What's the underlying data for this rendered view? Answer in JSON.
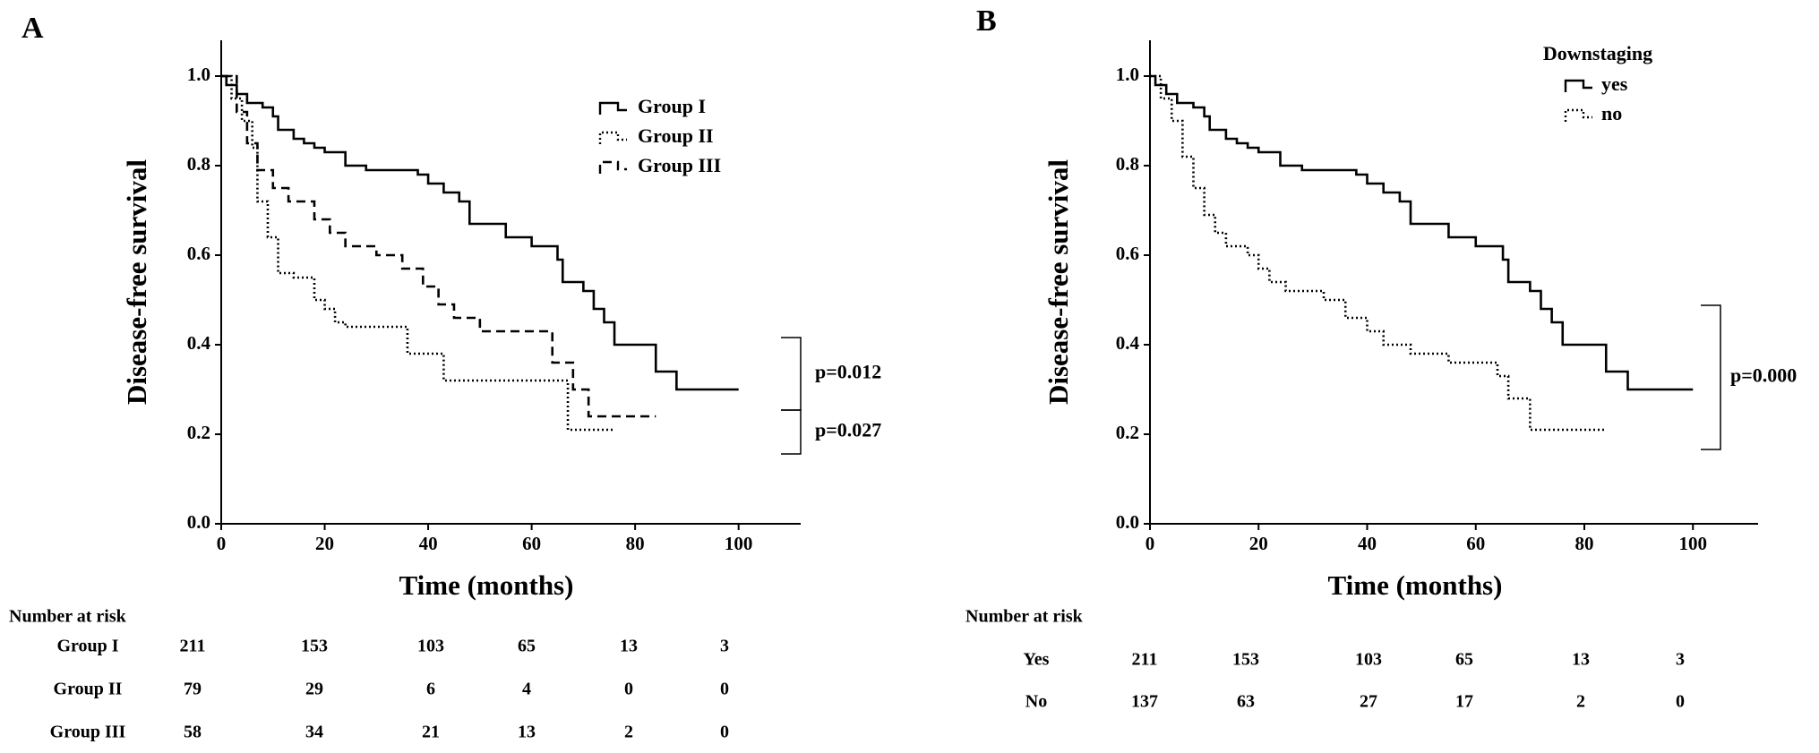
{
  "chart_data": [
    {
      "type": "line",
      "step": true,
      "grid": false,
      "panel_label": "A",
      "xlabel": "Time (months)",
      "ylabel": "Disease-free survival",
      "xlim": [
        0,
        112
      ],
      "ylim": [
        0,
        1.08
      ],
      "xticks": [
        0,
        20,
        40,
        60,
        80,
        100
      ],
      "yticks": [
        {
          "value": 0,
          "label": "0.0"
        },
        0.2,
        0.4,
        0.6,
        0.8,
        {
          "value": 1,
          "label": "1.0"
        }
      ],
      "series": [
        {
          "name": "Group I",
          "color": "#000000",
          "linestyle": "solid",
          "x": [
            0,
            1,
            3,
            5,
            8,
            10,
            11,
            14,
            16,
            18,
            20,
            24,
            28,
            38,
            40,
            43,
            46,
            48,
            55,
            60,
            65,
            66,
            70,
            72,
            74,
            76,
            84,
            88,
            100
          ],
          "values": [
            1.0,
            0.98,
            0.96,
            0.94,
            0.93,
            0.91,
            0.88,
            0.86,
            0.85,
            0.84,
            0.83,
            0.8,
            0.79,
            0.78,
            0.76,
            0.74,
            0.72,
            0.67,
            0.64,
            0.62,
            0.59,
            0.54,
            0.52,
            0.48,
            0.45,
            0.4,
            0.34,
            0.3,
            0.3
          ]
        },
        {
          "name": "Group II",
          "color": "#000000",
          "linestyle": "dotted",
          "x": [
            0,
            2,
            4,
            6,
            7,
            9,
            11,
            14,
            18,
            20,
            22,
            24,
            36,
            43,
            67,
            76
          ],
          "values": [
            1.0,
            0.95,
            0.9,
            0.84,
            0.72,
            0.64,
            0.56,
            0.55,
            0.5,
            0.48,
            0.45,
            0.44,
            0.38,
            0.32,
            0.21,
            0.21
          ]
        },
        {
          "name": "Group III",
          "color": "#000000",
          "linestyle": "dashed",
          "x": [
            0,
            3,
            5,
            7,
            10,
            13,
            18,
            21,
            24,
            30,
            35,
            39,
            42,
            45,
            50,
            64,
            68,
            71,
            84
          ],
          "values": [
            1.0,
            0.92,
            0.85,
            0.79,
            0.75,
            0.72,
            0.68,
            0.65,
            0.62,
            0.6,
            0.57,
            0.53,
            0.49,
            0.46,
            0.43,
            0.36,
            0.3,
            0.24,
            0.24
          ]
        }
      ],
      "annotations": [
        "p=0.012",
        "p=0.027"
      ],
      "risk_table": {
        "title": "Number at risk",
        "rows": [
          {
            "name": "Group I",
            "values": [
              211,
              153,
              103,
              65,
              13,
              3
            ]
          },
          {
            "name": "Group II",
            "values": [
              79,
              29,
              6,
              4,
              0,
              0
            ]
          },
          {
            "name": "Group III",
            "values": [
              58,
              34,
              21,
              13,
              2,
              0
            ]
          }
        ]
      }
    },
    {
      "type": "line",
      "step": true,
      "grid": false,
      "panel_label": "B",
      "xlabel": "Time (months)",
      "ylabel": "Disease-free survival",
      "xlim": [
        0,
        112
      ],
      "ylim": [
        0,
        1.08
      ],
      "xticks": [
        0,
        20,
        40,
        60,
        80,
        100
      ],
      "yticks": [
        {
          "value": 0,
          "label": "0.0"
        },
        0.2,
        0.4,
        0.6,
        0.8,
        {
          "value": 1,
          "label": "1.0"
        }
      ],
      "legend_title": "Downstaging",
      "series": [
        {
          "name": "yes",
          "color": "#000000",
          "linestyle": "solid",
          "x": [
            0,
            1,
            3,
            5,
            8,
            10,
            11,
            14,
            16,
            18,
            20,
            24,
            28,
            38,
            40,
            43,
            46,
            48,
            55,
            60,
            65,
            66,
            70,
            72,
            74,
            76,
            84,
            88,
            100
          ],
          "values": [
            1.0,
            0.98,
            0.96,
            0.94,
            0.93,
            0.91,
            0.88,
            0.86,
            0.85,
            0.84,
            0.83,
            0.8,
            0.79,
            0.78,
            0.76,
            0.74,
            0.72,
            0.67,
            0.64,
            0.62,
            0.59,
            0.54,
            0.52,
            0.48,
            0.45,
            0.4,
            0.34,
            0.3,
            0.3
          ]
        },
        {
          "name": "no",
          "color": "#000000",
          "linestyle": "dotted",
          "x": [
            0,
            2,
            4,
            6,
            8,
            10,
            12,
            14,
            18,
            20,
            22,
            25,
            32,
            36,
            40,
            43,
            48,
            55,
            64,
            66,
            70,
            84
          ],
          "values": [
            1.0,
            0.95,
            0.9,
            0.82,
            0.75,
            0.69,
            0.65,
            0.62,
            0.6,
            0.57,
            0.54,
            0.52,
            0.5,
            0.46,
            0.43,
            0.4,
            0.38,
            0.36,
            0.33,
            0.28,
            0.21,
            0.21
          ]
        }
      ],
      "annotations": [
        "p=0.000"
      ],
      "risk_table": {
        "title": "Number at risk",
        "rows": [
          {
            "name": "Yes",
            "values": [
              211,
              153,
              103,
              65,
              13,
              3
            ]
          },
          {
            "name": "No",
            "values": [
              137,
              63,
              27,
              17,
              2,
              0
            ]
          }
        ]
      }
    }
  ]
}
